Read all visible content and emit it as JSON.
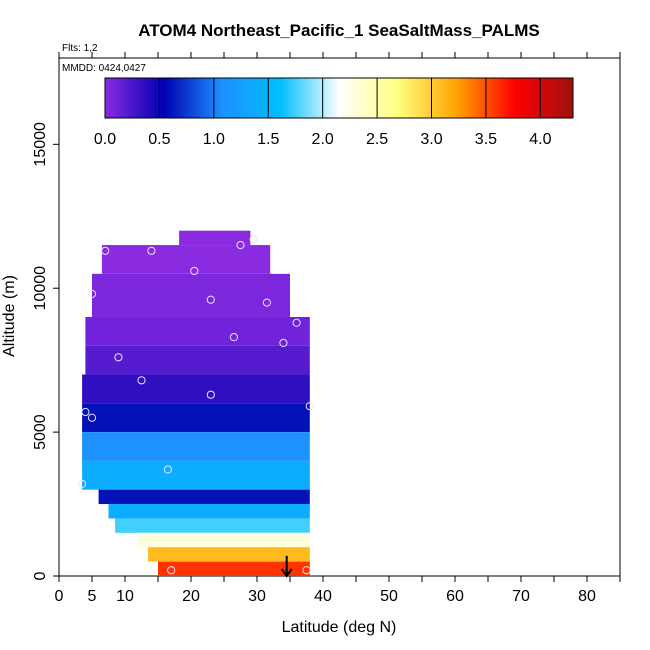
{
  "chart_data": {
    "type": "heatmap",
    "title": "ATOM4 Northeast_Pacific_1 SeaSaltMass_PALMS",
    "flights_label": "Flts: 1,2",
    "dates_label": "MMDD: 0424,0427",
    "xlabel": "Latitude (deg N)",
    "ylabel": "Altitude (m)",
    "xlim": [
      0,
      85
    ],
    "ylim": [
      0,
      18000
    ],
    "xticks": [
      0,
      5,
      10,
      20,
      30,
      40,
      50,
      60,
      70,
      80
    ],
    "yticks": [
      0,
      5000,
      10000,
      15000
    ],
    "grid": false,
    "colorbar": {
      "range": [
        0,
        4.3
      ],
      "ticks": [
        "0.0",
        "0.5",
        "1.0",
        "1.5",
        "2.0",
        "2.5",
        "3.0",
        "3.5",
        "4.0"
      ],
      "tick_values": [
        0,
        0.5,
        1.0,
        1.5,
        2.0,
        2.5,
        3.0,
        3.5,
        4.0
      ],
      "colors": [
        "#8a2be2",
        "#0000b0",
        "#1e90ff",
        "#00bfff",
        "#ffffff",
        "#ffff80",
        "#ffa500",
        "#ff0000",
        "#a01010"
      ]
    },
    "profiles": [
      {
        "alt_range": [
          11500,
          12000
        ],
        "lat_range": [
          18.2,
          29.0
        ],
        "value": 0.0
      },
      {
        "alt_range": [
          10500,
          11500
        ],
        "lat_range": [
          6.5,
          32.0
        ],
        "value": 0.0
      },
      {
        "alt_range": [
          9000,
          10500
        ],
        "lat_range": [
          5.0,
          35.0
        ],
        "value": 0.05
      },
      {
        "alt_range": [
          8000,
          9000
        ],
        "lat_range": [
          4.0,
          38.0
        ],
        "value": 0.1
      },
      {
        "alt_range": [
          7000,
          8000
        ],
        "lat_range": [
          4.0,
          38.0
        ],
        "value": 0.2
      },
      {
        "alt_range": [
          6000,
          7000
        ],
        "lat_range": [
          3.5,
          38.0
        ],
        "value": 0.35
      },
      {
        "alt_range": [
          5000,
          6000
        ],
        "lat_range": [
          3.5,
          38.0
        ],
        "value": 0.6
      },
      {
        "alt_range": [
          4000,
          5000
        ],
        "lat_range": [
          3.5,
          38.0
        ],
        "value": 1.1
      },
      {
        "alt_range": [
          3000,
          4000
        ],
        "lat_range": [
          3.5,
          38.0
        ],
        "value": 1.4
      },
      {
        "alt_range": [
          2500,
          3000
        ],
        "lat_range": [
          6.0,
          38.0
        ],
        "value": 0.6
      },
      {
        "alt_range": [
          2000,
          2500
        ],
        "lat_range": [
          7.5,
          38.0
        ],
        "value": 1.4
      },
      {
        "alt_range": [
          1500,
          2000
        ],
        "lat_range": [
          8.5,
          38.0
        ],
        "value": 1.75
      },
      {
        "alt_range": [
          1000,
          1500
        ],
        "lat_range": [
          12.0,
          38.0
        ],
        "value": 2.3
      },
      {
        "alt_range": [
          500,
          1000
        ],
        "lat_range": [
          13.5,
          38.0
        ],
        "value": 3.1
      },
      {
        "alt_range": [
          0,
          500
        ],
        "lat_range": [
          15.0,
          38.0
        ],
        "value": 3.6
      }
    ],
    "samples": [
      {
        "lat": 29.5,
        "alt": 11700
      },
      {
        "lat": 27.5,
        "alt": 11500
      },
      {
        "lat": 7.0,
        "alt": 11300
      },
      {
        "lat": 14.0,
        "alt": 11300
      },
      {
        "lat": 20.5,
        "alt": 10600
      },
      {
        "lat": 5.0,
        "alt": 9800
      },
      {
        "lat": 23.0,
        "alt": 9600
      },
      {
        "lat": 31.5,
        "alt": 9500
      },
      {
        "lat": 36.0,
        "alt": 8800
      },
      {
        "lat": 26.5,
        "alt": 8300
      },
      {
        "lat": 34.0,
        "alt": 8100
      },
      {
        "lat": 9.0,
        "alt": 7600
      },
      {
        "lat": 12.5,
        "alt": 6800
      },
      {
        "lat": 23.0,
        "alt": 6300
      },
      {
        "lat": 38.0,
        "alt": 5900
      },
      {
        "lat": 4.0,
        "alt": 5700
      },
      {
        "lat": 5.0,
        "alt": 5500
      },
      {
        "lat": 16.5,
        "alt": 3700
      },
      {
        "lat": 3.5,
        "alt": 3200
      },
      {
        "lat": 17.0,
        "alt": 200
      },
      {
        "lat": 37.5,
        "alt": 200
      }
    ],
    "arrow": {
      "lat": 34.5,
      "alt_from": 700,
      "alt_to": 0
    }
  }
}
